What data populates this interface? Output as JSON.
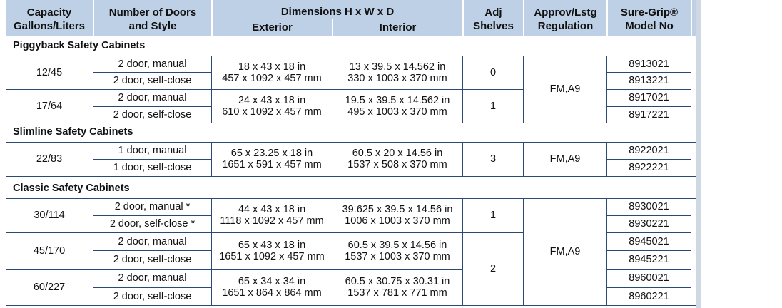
{
  "headers": {
    "capacity": [
      "Capacity",
      "Gallons/Liters"
    ],
    "doors": [
      "Number of Doors",
      "and Style"
    ],
    "dimensions": "Dimensions H x W x D",
    "exterior": "Exterior",
    "interior": "Interior",
    "shelves": [
      "Adj",
      "Shelves"
    ],
    "approval": [
      "Approv/Lstg",
      "Regulation"
    ],
    "model": [
      "Sure-Grip®",
      "Model No"
    ]
  },
  "sections": [
    {
      "title": "Piggyback Safety Cabinets",
      "approval": "FM,A9",
      "groups": [
        {
          "capacity": "12/45",
          "exterior": [
            "18 x 43 x 18 in",
            "457 x 1092 x 457 mm"
          ],
          "interior": [
            "13 x 39.5 x 14.562 in",
            "330 x 1003 x 370 mm"
          ],
          "shelves": "0",
          "rows": [
            {
              "doors": "2 door, manual",
              "model": "8913021"
            },
            {
              "doors": "2 door, self-close",
              "model": "8913221"
            }
          ]
        },
        {
          "capacity": "17/64",
          "exterior": [
            "24 x 43 x 18 in",
            "610 x 1092 x 457 mm"
          ],
          "interior": [
            "19.5 x 39.5 x 14.562 in",
            "495 x 1003 x 370 mm"
          ],
          "shelves": "1",
          "rows": [
            {
              "doors": "2 door, manual",
              "model": "8917021"
            },
            {
              "doors": "2 door, self-close",
              "model": "8917221"
            }
          ]
        }
      ]
    },
    {
      "title": "Slimline Safety Cabinets",
      "approval": "FM,A9",
      "groups": [
        {
          "capacity": "22/83",
          "exterior": [
            "65 x 23.25 x 18 in",
            "1651 x 591 x 457 mm"
          ],
          "interior": [
            "60.5 x 20 x 14.56 in",
            "1537 x 508 x 370 mm"
          ],
          "shelves": "3",
          "rows": [
            {
              "doors": "1 door, manual",
              "model": "8922021"
            },
            {
              "doors": "1 door, self-close",
              "model": "8922221"
            }
          ]
        }
      ]
    },
    {
      "title": "Classic Safety Cabinets",
      "approval": "FM,A9",
      "groups": [
        {
          "capacity": "30/114",
          "exterior": [
            "44 x 43 x 18 in",
            "1118 x 1092 x 457 mm"
          ],
          "interior": [
            "39.625 x 39.5 x 14.56 in",
            "1006 x 1003 x 370 mm"
          ],
          "shelves": "1",
          "rows": [
            {
              "doors": "2 door, manual *",
              "model": "8930021"
            },
            {
              "doors": "2 door, self-close *",
              "model": "8930221"
            }
          ]
        },
        {
          "capacity": "45/170",
          "exterior": [
            "65 x 43 x 18 in",
            "1651 x 1092 x 457 mm"
          ],
          "interior": [
            "60.5 x 39.5 x 14.56 in",
            "1537 x 1003 x 370 mm"
          ],
          "rows": [
            {
              "doors": "2 door, manual",
              "model": "8945021"
            },
            {
              "doors": "2 door, self-close",
              "model": "8945221"
            }
          ]
        },
        {
          "capacity": "60/227",
          "exterior": [
            "65 x 34 x 34 in",
            "1651 x 864 x 864 mm"
          ],
          "interior": [
            "60.5 x 30.75 x 30.31 in",
            "1537 x 781 x 771 mm"
          ],
          "rows": [
            {
              "doors": "2 door, manual",
              "model": "8960021"
            },
            {
              "doors": "2 door, self-close",
              "model": "8960221"
            }
          ]
        }
      ],
      "shared_shelves": "2"
    }
  ]
}
